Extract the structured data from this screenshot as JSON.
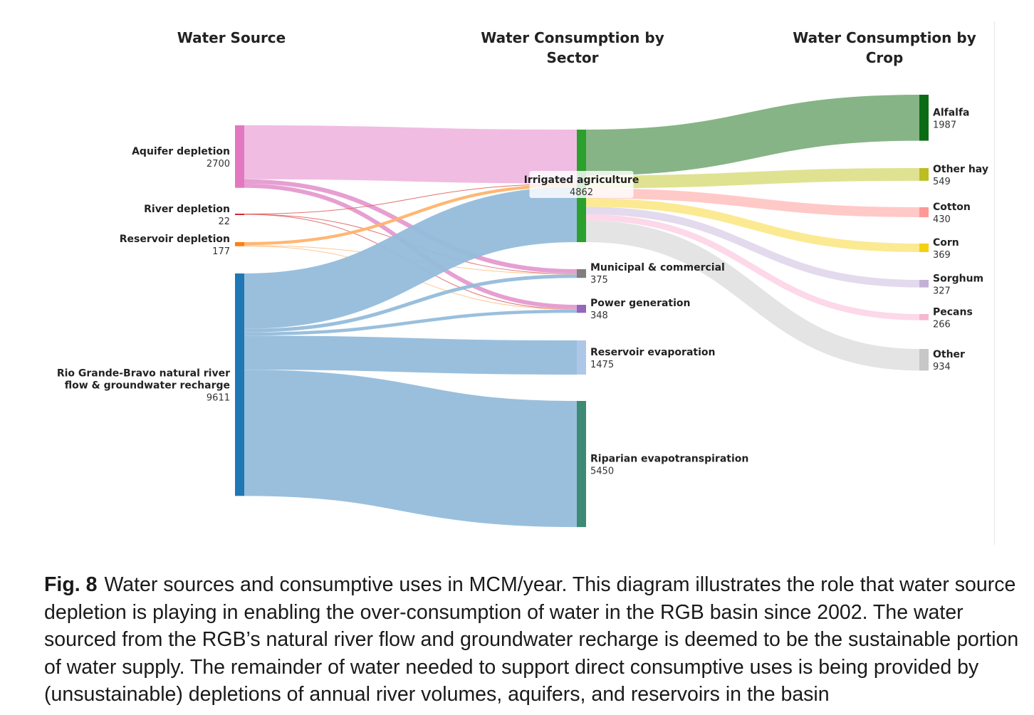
{
  "columns": {
    "source": "Water Source",
    "sector": [
      "Water Consumption by",
      "Sector"
    ],
    "crop": [
      "Water Consumption by",
      "Crop"
    ]
  },
  "nodes": [
    {
      "id": "aquifer",
      "name": [
        "Aquifer depletion"
      ],
      "value": 2700,
      "color": "#e377c2"
    },
    {
      "id": "river",
      "name": [
        "River depletion"
      ],
      "value": 22,
      "color": "#d62728"
    },
    {
      "id": "reservoir",
      "name": [
        "Reservoir depletion"
      ],
      "value": 177,
      "color": "#ff7f0e"
    },
    {
      "id": "natural",
      "name": [
        "Rio Grande-Bravo natural river",
        "flow & groundwater recharge"
      ],
      "value": 9611,
      "color": "#1f77b4"
    },
    {
      "id": "irrigated",
      "name": [
        "Irrigated agriculture"
      ],
      "value": 4862,
      "color": "#2ca02c"
    },
    {
      "id": "municipal",
      "name": [
        "Municipal & commercial"
      ],
      "value": 375,
      "color": "#7f7f7f"
    },
    {
      "id": "power",
      "name": [
        "Power generation"
      ],
      "value": 348,
      "color": "#9467bd"
    },
    {
      "id": "res_evap",
      "name": [
        "Reservoir evaporation"
      ],
      "value": 1475,
      "color": "#aec7e8"
    },
    {
      "id": "riparian",
      "name": [
        "Riparian evapotranspiration"
      ],
      "value": 5450,
      "color": "#3d8b74"
    },
    {
      "id": "alfalfa",
      "name": [
        "Alfalfa"
      ],
      "value": 1987,
      "color": "#0b6b14"
    },
    {
      "id": "otherhay",
      "name": [
        "Other hay"
      ],
      "value": 549,
      "color": "#bcbd22"
    },
    {
      "id": "cotton",
      "name": [
        "Cotton"
      ],
      "value": 430,
      "color": "#ff9896"
    },
    {
      "id": "corn",
      "name": [
        "Corn"
      ],
      "value": 369,
      "color": "#f5d00f"
    },
    {
      "id": "sorghum",
      "name": [
        "Sorghum"
      ],
      "value": 327,
      "color": "#c5b0d5"
    },
    {
      "id": "pecans",
      "name": [
        "Pecans"
      ],
      "value": 266,
      "color": "#f7b6d2"
    },
    {
      "id": "other",
      "name": [
        "Other"
      ],
      "value": 934,
      "color": "#c7c7c7"
    }
  ],
  "links": [
    {
      "source": "aquifer",
      "target": "irrigated",
      "value": 2330,
      "color": "#efb8e0"
    },
    {
      "source": "aquifer",
      "target": "municipal",
      "value": 190,
      "color": "#e59ad0"
    },
    {
      "source": "aquifer",
      "target": "power",
      "value": 180,
      "color": "#e59ad0"
    },
    {
      "source": "river",
      "target": "irrigated",
      "value": 8,
      "color": "#e06a6a"
    },
    {
      "source": "river",
      "target": "municipal",
      "value": 7,
      "color": "#e06a6a"
    },
    {
      "source": "river",
      "target": "power",
      "value": 7,
      "color": "#e06a6a"
    },
    {
      "source": "reservoir",
      "target": "irrigated",
      "value": 130,
      "color": "#ffb36b"
    },
    {
      "source": "reservoir",
      "target": "municipal",
      "value": 25,
      "color": "#ffc48a"
    },
    {
      "source": "reservoir",
      "target": "power",
      "value": 22,
      "color": "#ffc48a"
    },
    {
      "source": "natural",
      "target": "irrigated",
      "value": 2394,
      "color": "#93bcdb"
    },
    {
      "source": "natural",
      "target": "municipal",
      "value": 153,
      "color": "#93bcdb"
    },
    {
      "source": "natural",
      "target": "power",
      "value": 139,
      "color": "#93bcdb"
    },
    {
      "source": "natural",
      "target": "res_evap",
      "value": 1475,
      "color": "#93bcdb"
    },
    {
      "source": "natural",
      "target": "riparian",
      "value": 5450,
      "color": "#93bcdb"
    },
    {
      "source": "irrigated",
      "target": "alfalfa",
      "value": 1987,
      "color": "#7fb07f"
    },
    {
      "source": "irrigated",
      "target": "otherhay",
      "value": 549,
      "color": "#dde08a"
    },
    {
      "source": "irrigated",
      "target": "cotton",
      "value": 430,
      "color": "#ffc6c4"
    },
    {
      "source": "irrigated",
      "target": "corn",
      "value": 369,
      "color": "#fbe98c"
    },
    {
      "source": "irrigated",
      "target": "sorghum",
      "value": 327,
      "color": "#e2d8ec"
    },
    {
      "source": "irrigated",
      "target": "pecans",
      "value": 266,
      "color": "#fcd6e8"
    },
    {
      "source": "irrigated",
      "target": "other",
      "value": 934,
      "color": "#e3e3e3"
    }
  ],
  "caption": {
    "label": "Fig. 8",
    "text": "Water sources and consumptive uses in MCM/year. This diagram illustrates the role that water source depletion is playing in enabling the over-consumption of water in the RGB basin since 2002. The water sourced from the RGB’s natural river flow and groundwater recharge is deemed to be the sustainable portion of water supply. The remainder of water needed to support direct consumptive uses is being provided by (unsustainable) depletions of annual river volumes, aquifers, and reservoirs in the basin"
  }
}
